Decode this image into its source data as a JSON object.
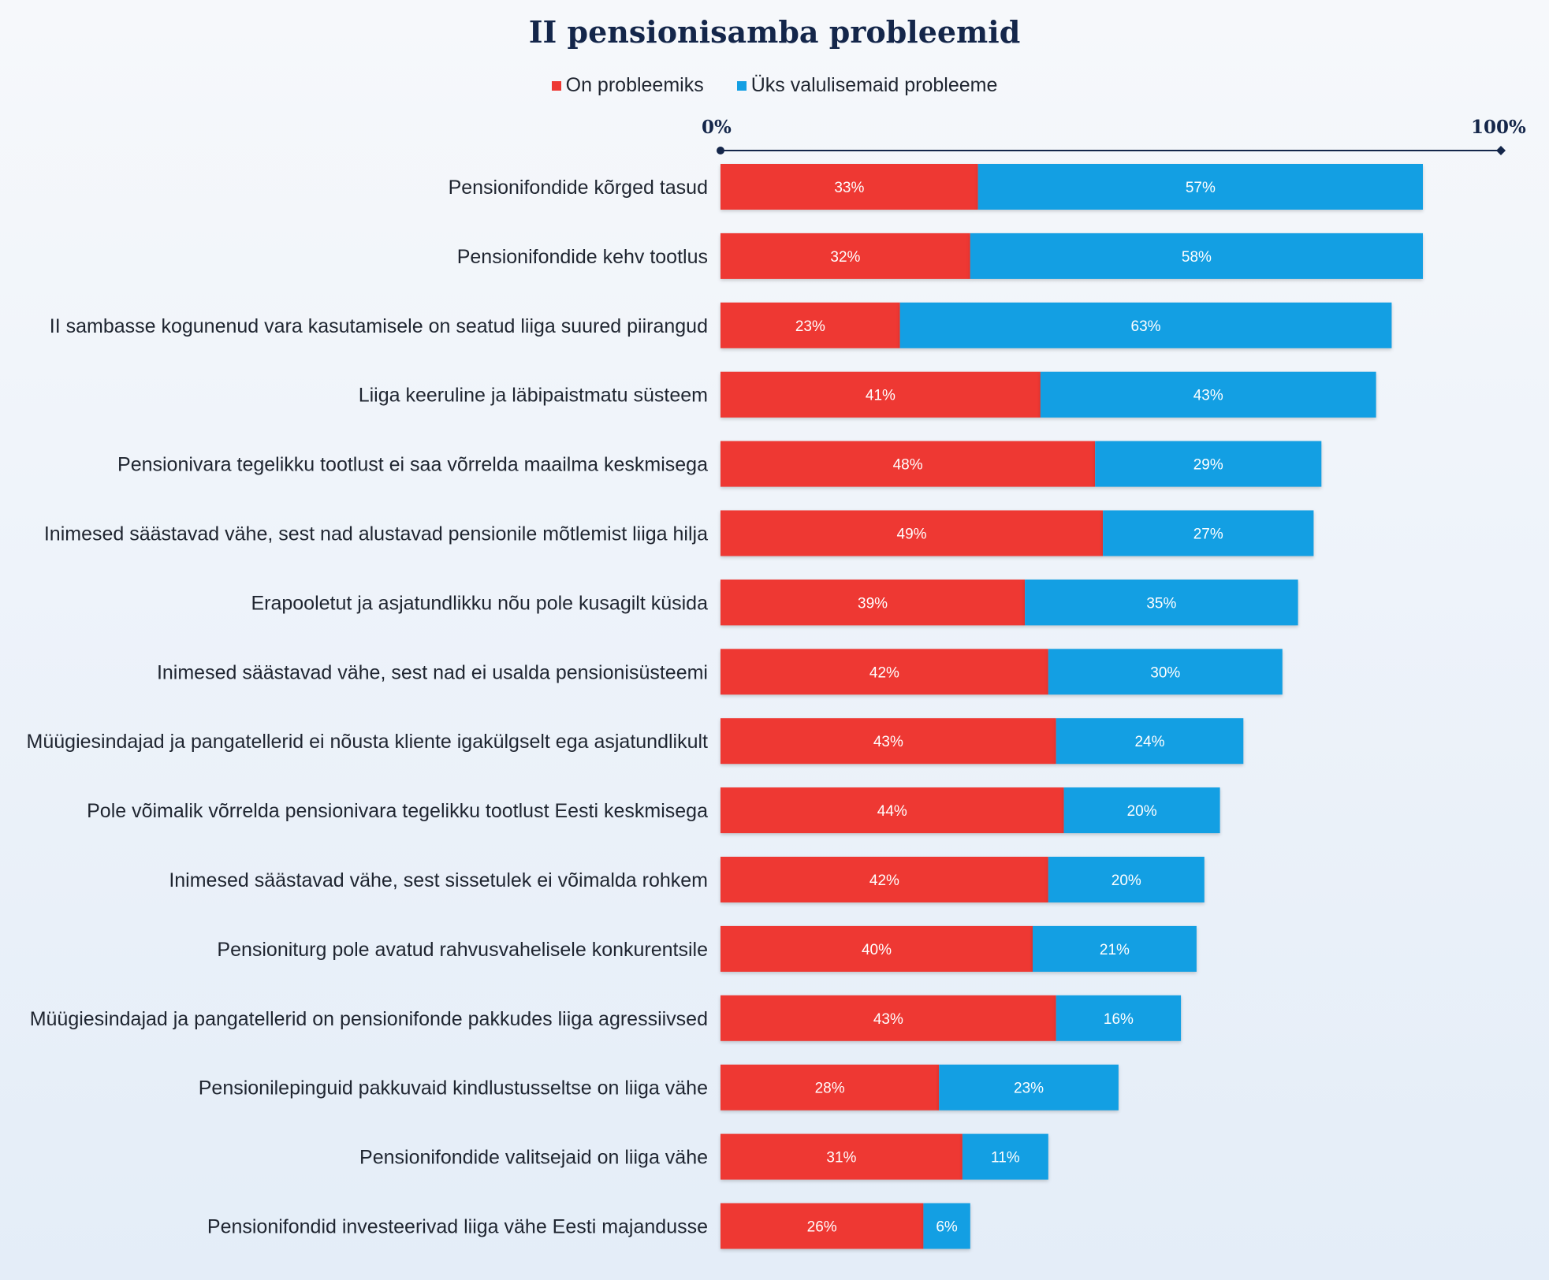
{
  "title": "II pensionisamba probleemid",
  "colors": {
    "series_red": "#ee3833",
    "series_blue": "#139fe3",
    "axis": "#14264a"
  },
  "legend": [
    {
      "label": "On probleemiks",
      "color": "#ee3833"
    },
    {
      "label": "Üks valulisemaid probleeme",
      "color": "#139fe3"
    }
  ],
  "axis": {
    "min_label": "0%",
    "max_label": "100%"
  },
  "chart_data": {
    "type": "bar",
    "orientation": "horizontal",
    "stacked": true,
    "title": "II pensionisamba probleemid",
    "xlim": [
      0,
      100
    ],
    "legend_position": "top-center",
    "grid": false,
    "categories": [
      "Pensionifondide kõrged tasud",
      "Pensionifondide kehv tootlus",
      "II sambasse kogunenud vara kasutamisele on seatud liiga suured piirangud",
      "Liiga keeruline ja läbipaistmatu süsteem",
      "Pensionivara tegelikku tootlust ei saa võrrelda maailma keskmisega",
      "Inimesed säästavad vähe, sest nad alustavad pensionile mõtlemist liiga hilja",
      "Erapooletut ja asjatundlikku nõu pole kusagilt küsida",
      "Inimesed säästavad vähe, sest nad ei usalda pensionisüsteemi",
      "Müügiesindajad ja pangatellerid ei nõusta kliente igakülgselt ega asjatundlikult",
      "Pole võimalik võrrelda pensionivara tegelikku tootlust Eesti keskmisega",
      "Inimesed säästavad vähe, sest sissetulek ei võimalda rohkem",
      "Pensioniturg pole avatud rahvusvahelisele konkurentsile",
      "Müügiesindajad ja pangatellerid on pensionifonde pakkudes liiga agressiivsed",
      "Pensionilepinguid pakkuvaid kindlustusseltse on liiga vähe",
      "Pensionifondide valitsejaid on liiga vähe",
      "Pensionifondid investeerivad liiga vähe Eesti majandusse"
    ],
    "series": [
      {
        "name": "On probleemiks",
        "color": "#ee3833",
        "values": [
          33,
          32,
          23,
          41,
          48,
          49,
          39,
          42,
          43,
          44,
          42,
          40,
          43,
          28,
          31,
          26
        ]
      },
      {
        "name": "Üks valulisemaid probleeme",
        "color": "#139fe3",
        "values": [
          57,
          58,
          63,
          43,
          29,
          27,
          35,
          30,
          24,
          20,
          20,
          21,
          16,
          23,
          11,
          6
        ]
      }
    ]
  }
}
